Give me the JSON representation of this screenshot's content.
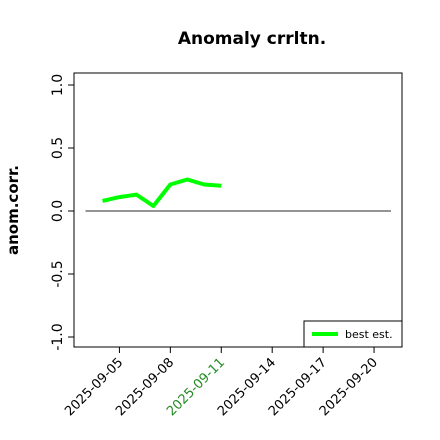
{
  "chart_data": {
    "type": "line",
    "title": "Anomaly crrltn.",
    "ylabel": "anom.corr.",
    "xlabel": "",
    "ylim": [
      -1.0,
      1.0
    ],
    "yticks": [
      -1.0,
      -0.5,
      0.0,
      0.5,
      1.0
    ],
    "ytick_labels": [
      "-1.0",
      "-0.5",
      "0.0",
      "0.5",
      "1.0"
    ],
    "xlim": [
      "2025-09-02",
      "2025-09-22"
    ],
    "xticks": [
      "2025-09-05",
      "2025-09-08",
      "2025-09-11",
      "2025-09-14",
      "2025-09-17",
      "2025-09-20"
    ],
    "xtick_colors": [
      "#000000",
      "#000000",
      "#228B22",
      "#000000",
      "#000000",
      "#000000"
    ],
    "reference_line": {
      "y": 0.0,
      "from": "2025-09-03",
      "to": "2025-09-21",
      "color": "#555555"
    },
    "series": [
      {
        "name": "best est.",
        "color": "#00ff00",
        "x": [
          "2025-09-04",
          "2025-09-05",
          "2025-09-06",
          "2025-09-07",
          "2025-09-08",
          "2025-09-09",
          "2025-09-10",
          "2025-09-11"
        ],
        "y": [
          0.08,
          0.11,
          0.13,
          0.04,
          0.21,
          0.25,
          0.21,
          0.2
        ]
      }
    ],
    "grid": false,
    "legend": {
      "position": "bottom-right"
    }
  }
}
